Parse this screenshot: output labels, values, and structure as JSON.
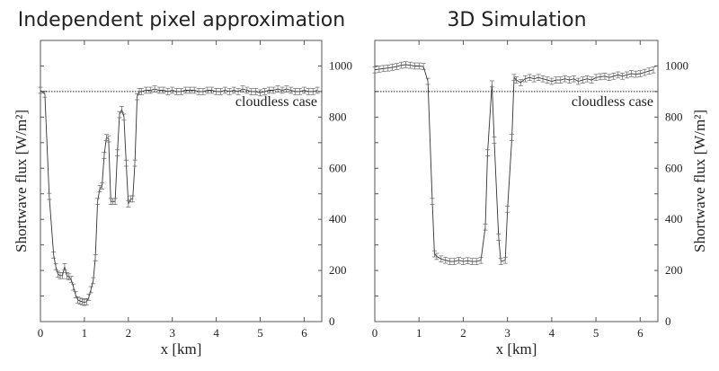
{
  "chart_data": [
    {
      "type": "line",
      "title": "Independent pixel approximation",
      "xlabel": "x [km]",
      "ylabel": "Shortwave flux [W/m²]",
      "xlim": [
        0,
        6.4
      ],
      "ylim": [
        0,
        1100
      ],
      "xticks": [
        0,
        1,
        2,
        3,
        4,
        5,
        6
      ],
      "yticks": [
        0,
        200,
        400,
        600,
        800,
        1000
      ],
      "ytick_side": "right",
      "ylabel_side": "left",
      "grid": false,
      "error_bars": true,
      "reference_line": {
        "y": 900,
        "label": "cloudless case",
        "style": "dotted"
      },
      "x": [
        0,
        0.1,
        0.2,
        0.3,
        0.35,
        0.4,
        0.45,
        0.5,
        0.55,
        0.6,
        0.65,
        0.7,
        0.75,
        0.8,
        0.85,
        0.9,
        0.95,
        1.0,
        1.05,
        1.1,
        1.15,
        1.2,
        1.25,
        1.3,
        1.35,
        1.4,
        1.45,
        1.5,
        1.55,
        1.6,
        1.65,
        1.7,
        1.75,
        1.8,
        1.85,
        1.9,
        1.95,
        2.0,
        2.05,
        2.1,
        2.15,
        2.2,
        2.25,
        2.3,
        2.4,
        2.5,
        2.6,
        2.7,
        2.8,
        2.9,
        3.0,
        3.1,
        3.2,
        3.3,
        3.4,
        3.5,
        3.6,
        3.7,
        3.8,
        3.9,
        4.0,
        4.1,
        4.2,
        4.3,
        4.4,
        4.5,
        4.6,
        4.7,
        4.8,
        4.9,
        5.0,
        5.1,
        5.2,
        5.3,
        5.4,
        5.5,
        5.6,
        5.7,
        5.8,
        5.9,
        6.0,
        6.1,
        6.2,
        6.3
      ],
      "y": [
        905,
        890,
        490,
        260,
        215,
        185,
        180,
        180,
        215,
        180,
        175,
        165,
        135,
        105,
        85,
        80,
        78,
        75,
        78,
        95,
        125,
        160,
        250,
        470,
        520,
        530,
        650,
        720,
        715,
        470,
        470,
        470,
        660,
        810,
        830,
        800,
        620,
        460,
        480,
        480,
        620,
        880,
        900,
        900,
        905,
        905,
        910,
        905,
        905,
        900,
        905,
        900,
        900,
        905,
        905,
        905,
        900,
        900,
        905,
        905,
        900,
        900,
        905,
        900,
        905,
        900,
        910,
        905,
        900,
        900,
        895,
        900,
        905,
        905,
        910,
        905,
        910,
        905,
        900,
        900,
        905,
        900,
        900,
        905
      ],
      "yerr": 12
    },
    {
      "type": "line",
      "title": "3D Simulation",
      "xlabel": "x [km]",
      "ylabel": "Shortwave flux [W/m²]",
      "xlim": [
        0,
        6.4
      ],
      "ylim": [
        0,
        1100
      ],
      "xticks": [
        0,
        1,
        2,
        3,
        4,
        5,
        6
      ],
      "yticks": [
        0,
        200,
        400,
        600,
        800,
        1000
      ],
      "ytick_side": "right",
      "ylabel_side": "right",
      "grid": false,
      "error_bars": true,
      "reference_line": {
        "y": 900,
        "label": "cloudless case",
        "style": "dotted"
      },
      "x": [
        0,
        0.1,
        0.2,
        0.3,
        0.4,
        0.5,
        0.6,
        0.7,
        0.8,
        0.9,
        1.0,
        1.1,
        1.2,
        1.3,
        1.35,
        1.4,
        1.5,
        1.6,
        1.7,
        1.8,
        1.9,
        2.0,
        2.1,
        2.2,
        2.3,
        2.4,
        2.5,
        2.55,
        2.65,
        2.7,
        2.8,
        2.85,
        2.95,
        3.0,
        3.1,
        3.15,
        3.2,
        3.3,
        3.4,
        3.5,
        3.6,
        3.7,
        3.8,
        3.9,
        4.0,
        4.1,
        4.2,
        4.3,
        4.4,
        4.5,
        4.6,
        4.7,
        4.8,
        4.9,
        5.0,
        5.1,
        5.2,
        5.3,
        5.4,
        5.5,
        5.6,
        5.7,
        5.8,
        5.9,
        6.0,
        6.1,
        6.2,
        6.3
      ],
      "y": [
        985,
        988,
        990,
        992,
        995,
        998,
        1003,
        1005,
        1003,
        1000,
        1000,
        998,
        940,
        470,
        265,
        255,
        245,
        240,
        235,
        235,
        240,
        235,
        238,
        235,
        235,
        240,
        370,
        660,
        930,
        710,
        330,
        235,
        240,
        440,
        720,
        955,
        945,
        935,
        950,
        955,
        950,
        955,
        950,
        945,
        940,
        945,
        945,
        950,
        945,
        950,
        940,
        945,
        950,
        945,
        955,
        958,
        960,
        955,
        960,
        965,
        960,
        965,
        970,
        968,
        970,
        975,
        980,
        985
      ],
      "yerr": 12
    }
  ]
}
